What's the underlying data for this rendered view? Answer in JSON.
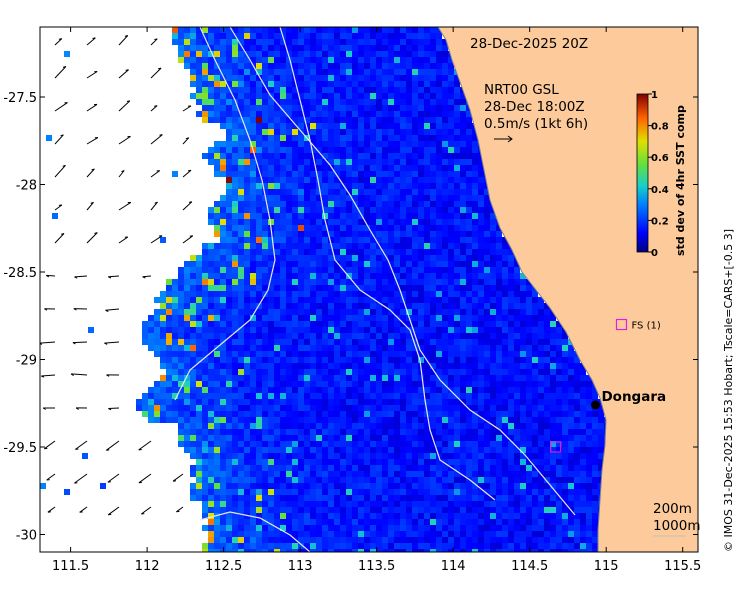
{
  "map": {
    "date_title": "28-Dec-2025 20Z",
    "current_title": "NRT00 GSL",
    "current_time": "28-Dec 18:00Z",
    "current_scale": "0.5m/s (1kt 6h)",
    "town_label": "Dongara",
    "site_label": "FS (1)",
    "isobath_200": "200m",
    "isobath_1000": "1000m",
    "side_text": "© IMOS 31-Dec-2025 15:53 Hobart; Tscale=CARS+[-0.5 3]",
    "colors": {
      "land": "#fdcb9b",
      "ocean_base": "#0010a0",
      "coast_line": "#808080",
      "marker_magenta": "#e020e0"
    },
    "extent": {
      "lon": [
        111.3,
        115.6
      ],
      "lat": [
        -30.1,
        -27.1
      ]
    },
    "dongara": {
      "lon": 114.93,
      "lat": -29.26
    },
    "fs_site": {
      "lon": 115.1,
      "lat": -28.8
    },
    "square2": {
      "lon": 114.67,
      "lat": -29.5
    }
  },
  "axes": {
    "x_ticks": [
      "111.5",
      "112",
      "112.5",
      "113",
      "113.5",
      "114",
      "114.5",
      "115",
      "115.5"
    ],
    "x_values": [
      111.5,
      112,
      112.5,
      113,
      113.5,
      114,
      114.5,
      115,
      115.5
    ],
    "y_ticks": [
      "-27.5",
      "-28",
      "-28.5",
      "-29",
      "-29.5",
      "-30"
    ],
    "y_values": [
      -27.5,
      -28,
      -28.5,
      -29,
      -29.5,
      -30
    ]
  },
  "colorbar": {
    "label": "std dev of 4hr SST comp",
    "ticks": [
      "0",
      "0.2",
      "0.4",
      "0.6",
      "0.8",
      "1"
    ],
    "tick_values": [
      0,
      0.2,
      0.4,
      0.6,
      0.8,
      1
    ],
    "range": [
      0,
      1
    ]
  }
}
